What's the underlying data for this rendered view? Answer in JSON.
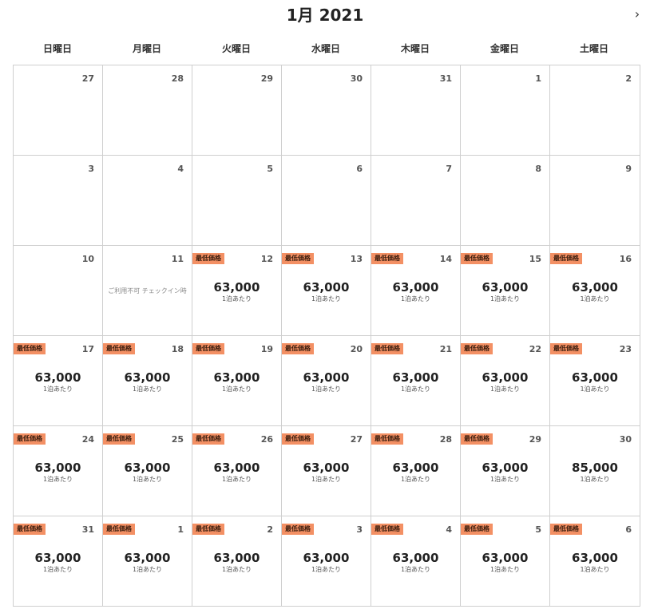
{
  "calendar": {
    "month_title": "1月 2021",
    "next_icon": "chevron-right-icon",
    "next_glyph": "›",
    "weekdays": [
      "日曜日",
      "月曜日",
      "火曜日",
      "水曜日",
      "木曜日",
      "金曜日",
      "土曜日"
    ],
    "badge_color": "#f39064",
    "weeks": [
      [
        {
          "day": "27"
        },
        {
          "day": "28"
        },
        {
          "day": "29"
        },
        {
          "day": "30"
        },
        {
          "day": "31"
        },
        {
          "day": "1"
        },
        {
          "day": "2"
        }
      ],
      [
        {
          "day": "3"
        },
        {
          "day": "4"
        },
        {
          "day": "5"
        },
        {
          "day": "6"
        },
        {
          "day": "7"
        },
        {
          "day": "8"
        },
        {
          "day": "9"
        }
      ],
      [
        {
          "day": "10"
        },
        {
          "day": "11",
          "note": "ご利用不可 チェックイン時"
        },
        {
          "day": "12",
          "badge": "最低価格",
          "price": "63,000",
          "per": "1泊あたり"
        },
        {
          "day": "13",
          "badge": "最低価格",
          "price": "63,000",
          "per": "1泊あたり"
        },
        {
          "day": "14",
          "badge": "最低価格",
          "price": "63,000",
          "per": "1泊あたり"
        },
        {
          "day": "15",
          "badge": "最低価格",
          "price": "63,000",
          "per": "1泊あたり"
        },
        {
          "day": "16",
          "badge": "最低価格",
          "price": "63,000",
          "per": "1泊あたり"
        }
      ],
      [
        {
          "day": "17",
          "badge": "最低価格",
          "price": "63,000",
          "per": "1泊あたり"
        },
        {
          "day": "18",
          "badge": "最低価格",
          "price": "63,000",
          "per": "1泊あたり"
        },
        {
          "day": "19",
          "badge": "最低価格",
          "price": "63,000",
          "per": "1泊あたり"
        },
        {
          "day": "20",
          "badge": "最低価格",
          "price": "63,000",
          "per": "1泊あたり"
        },
        {
          "day": "21",
          "badge": "最低価格",
          "price": "63,000",
          "per": "1泊あたり"
        },
        {
          "day": "22",
          "badge": "最低価格",
          "price": "63,000",
          "per": "1泊あたり"
        },
        {
          "day": "23",
          "badge": "最低価格",
          "price": "63,000",
          "per": "1泊あたり"
        }
      ],
      [
        {
          "day": "24",
          "badge": "最低価格",
          "price": "63,000",
          "per": "1泊あたり"
        },
        {
          "day": "25",
          "badge": "最低価格",
          "price": "63,000",
          "per": "1泊あたり"
        },
        {
          "day": "26",
          "badge": "最低価格",
          "price": "63,000",
          "per": "1泊あたり"
        },
        {
          "day": "27",
          "badge": "最低価格",
          "price": "63,000",
          "per": "1泊あたり"
        },
        {
          "day": "28",
          "badge": "最低価格",
          "price": "63,000",
          "per": "1泊あたり"
        },
        {
          "day": "29",
          "badge": "最低価格",
          "price": "63,000",
          "per": "1泊あたり"
        },
        {
          "day": "30",
          "price": "85,000",
          "per": "1泊あたり"
        }
      ],
      [
        {
          "day": "31",
          "badge": "最低価格",
          "price": "63,000",
          "per": "1泊あたり"
        },
        {
          "day": "1",
          "badge": "最低価格",
          "price": "63,000",
          "per": "1泊あたり"
        },
        {
          "day": "2",
          "badge": "最低価格",
          "price": "63,000",
          "per": "1泊あたり"
        },
        {
          "day": "3",
          "badge": "最低価格",
          "price": "63,000",
          "per": "1泊あたり"
        },
        {
          "day": "4",
          "badge": "最低価格",
          "price": "63,000",
          "per": "1泊あたり"
        },
        {
          "day": "5",
          "badge": "最低価格",
          "price": "63,000",
          "per": "1泊あたり"
        },
        {
          "day": "6",
          "badge": "最低価格",
          "price": "63,000",
          "per": "1泊あたり"
        }
      ]
    ]
  }
}
